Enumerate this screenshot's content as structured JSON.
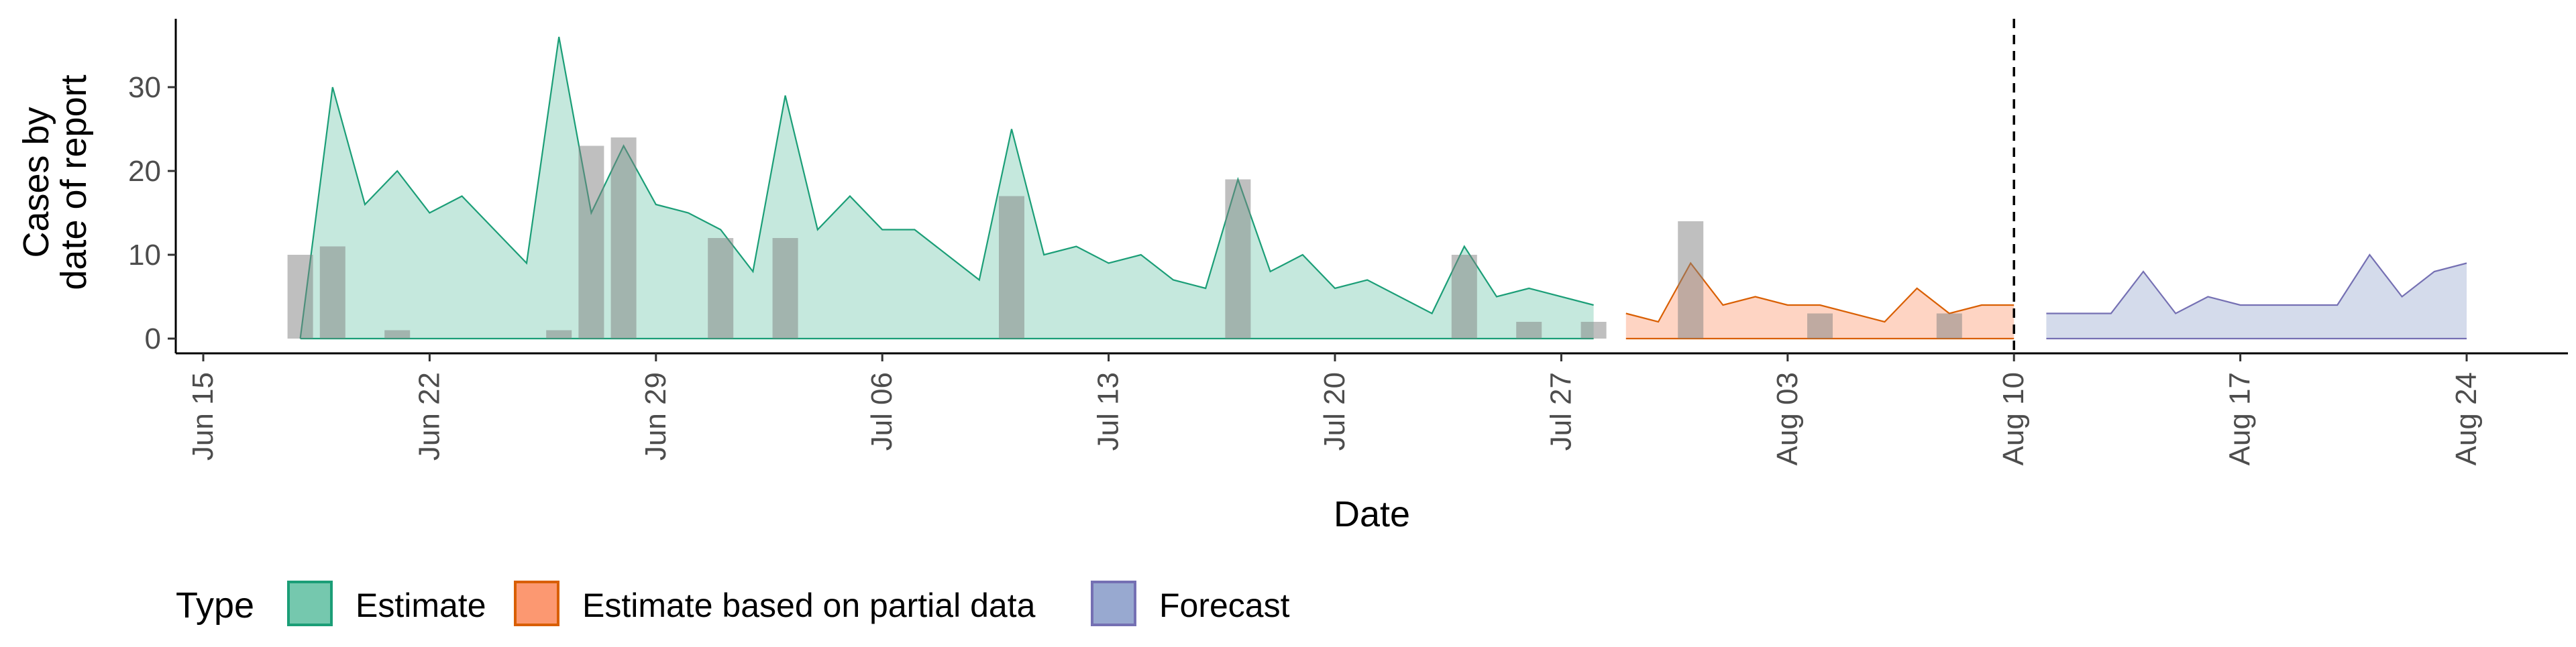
{
  "chart_data": {
    "type": "area",
    "xlabel": "Date",
    "ylabel_lines": [
      "Cases by",
      "date of report"
    ],
    "ylim": [
      0,
      36
    ],
    "yticks": [
      0,
      10,
      20,
      30
    ],
    "xlim": [
      "2020-06-15",
      "2020-08-24"
    ],
    "xticks": [
      {
        "date": "2020-06-15",
        "label": "Jun 15"
      },
      {
        "date": "2020-06-22",
        "label": "Jun 22"
      },
      {
        "date": "2020-06-29",
        "label": "Jun 29"
      },
      {
        "date": "2020-07-06",
        "label": "Jul 06"
      },
      {
        "date": "2020-07-13",
        "label": "Jul 13"
      },
      {
        "date": "2020-07-20",
        "label": "Jul 20"
      },
      {
        "date": "2020-07-27",
        "label": "Jul 27"
      },
      {
        "date": "2020-08-03",
        "label": "Aug 03"
      },
      {
        "date": "2020-08-10",
        "label": "Aug 10"
      },
      {
        "date": "2020-08-17",
        "label": "Aug 17"
      },
      {
        "date": "2020-08-24",
        "label": "Aug 24"
      }
    ],
    "vline_date": "2020-08-10",
    "legend": {
      "title": "Type",
      "position": "bottom",
      "entries": [
        {
          "label": "Estimate",
          "fill": "#66c2a5",
          "stroke": "#1b9e77"
        },
        {
          "label": "Estimate based on partial data",
          "fill": "#fc8d62",
          "stroke": "#d95f02"
        },
        {
          "label": "Forecast",
          "fill": "#8da0cb",
          "stroke": "#7570b3"
        }
      ]
    },
    "series": [
      {
        "name": "Estimate",
        "fill": "#66c2a5",
        "stroke": "#1b9e77",
        "points": [
          [
            "2020-06-18",
            0
          ],
          [
            "2020-06-19",
            30
          ],
          [
            "2020-06-20",
            16
          ],
          [
            "2020-06-21",
            20
          ],
          [
            "2020-06-22",
            15
          ],
          [
            "2020-06-23",
            17
          ],
          [
            "2020-06-25",
            9
          ],
          [
            "2020-06-26",
            36
          ],
          [
            "2020-06-27",
            15
          ],
          [
            "2020-06-28",
            23
          ],
          [
            "2020-06-29",
            16
          ],
          [
            "2020-06-30",
            15
          ],
          [
            "2020-07-01",
            13
          ],
          [
            "2020-07-02",
            8
          ],
          [
            "2020-07-03",
            29
          ],
          [
            "2020-07-04",
            13
          ],
          [
            "2020-07-05",
            17
          ],
          [
            "2020-07-06",
            13
          ],
          [
            "2020-07-07",
            13
          ],
          [
            "2020-07-09",
            7
          ],
          [
            "2020-07-10",
            25
          ],
          [
            "2020-07-11",
            10
          ],
          [
            "2020-07-12",
            11
          ],
          [
            "2020-07-13",
            9
          ],
          [
            "2020-07-14",
            10
          ],
          [
            "2020-07-15",
            7
          ],
          [
            "2020-07-16",
            6
          ],
          [
            "2020-07-17",
            19
          ],
          [
            "2020-07-18",
            8
          ],
          [
            "2020-07-19",
            10
          ],
          [
            "2020-07-20",
            6
          ],
          [
            "2020-07-21",
            7
          ],
          [
            "2020-07-23",
            3
          ],
          [
            "2020-07-24",
            11
          ],
          [
            "2020-07-25",
            5
          ],
          [
            "2020-07-26",
            6
          ],
          [
            "2020-07-28",
            4
          ]
        ]
      },
      {
        "name": "Estimate based on partial data",
        "fill": "#fc8d62",
        "stroke": "#d95f02",
        "points": [
          [
            "2020-07-29",
            3
          ],
          [
            "2020-07-30",
            2
          ],
          [
            "2020-07-31",
            9
          ],
          [
            "2020-08-01",
            4
          ],
          [
            "2020-08-02",
            5
          ],
          [
            "2020-08-03",
            4
          ],
          [
            "2020-08-04",
            4
          ],
          [
            "2020-08-06",
            2
          ],
          [
            "2020-08-07",
            6
          ],
          [
            "2020-08-08",
            3
          ],
          [
            "2020-08-09",
            4
          ],
          [
            "2020-08-10",
            4
          ]
        ]
      },
      {
        "name": "Forecast",
        "fill": "#8da0cb",
        "stroke": "#7570b3",
        "points": [
          [
            "2020-08-11",
            3
          ],
          [
            "2020-08-13",
            3
          ],
          [
            "2020-08-14",
            8
          ],
          [
            "2020-08-15",
            3
          ],
          [
            "2020-08-16",
            5
          ],
          [
            "2020-08-17",
            4
          ],
          [
            "2020-08-20",
            4
          ],
          [
            "2020-08-21",
            10
          ],
          [
            "2020-08-22",
            5
          ],
          [
            "2020-08-23",
            8
          ],
          [
            "2020-08-24",
            9
          ]
        ]
      }
    ],
    "bars": {
      "color": "#808080",
      "points": [
        [
          "2020-06-18",
          10
        ],
        [
          "2020-06-19",
          11
        ],
        [
          "2020-06-21",
          1
        ],
        [
          "2020-06-26",
          1
        ],
        [
          "2020-06-27",
          23
        ],
        [
          "2020-06-28",
          24
        ],
        [
          "2020-07-01",
          12
        ],
        [
          "2020-07-03",
          12
        ],
        [
          "2020-07-10",
          17
        ],
        [
          "2020-07-17",
          19
        ],
        [
          "2020-07-24",
          10
        ],
        [
          "2020-07-26",
          2
        ],
        [
          "2020-07-28",
          2
        ],
        [
          "2020-07-31",
          14
        ],
        [
          "2020-08-04",
          3
        ],
        [
          "2020-08-08",
          3
        ]
      ]
    }
  }
}
